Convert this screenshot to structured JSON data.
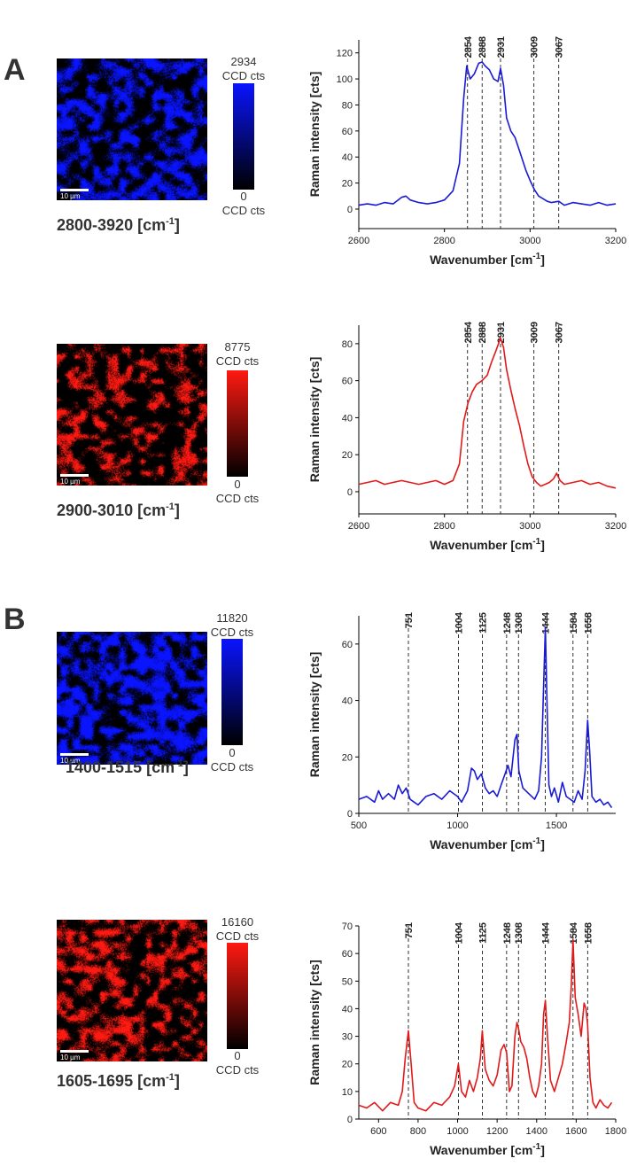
{
  "panels": [
    {
      "letter": "A"
    },
    {
      "letter": "B"
    }
  ],
  "maps": [
    {
      "color": "#0a14ff",
      "range": "2800-3920 [cm",
      "range_unit": "-1",
      "range_close": "]",
      "max": "2934",
      "min": "0",
      "unit": "CCD cts",
      "scale": "10 µm"
    },
    {
      "color": "#ff1a12",
      "range": "2900-3010 [cm",
      "range_unit": "-1",
      "range_close": "]",
      "max": "8775",
      "min": "0",
      "unit": "CCD cts",
      "scale": "10 µm"
    },
    {
      "color": "#0a14ff",
      "range": "1400-1515 [cm",
      "range_unit": "-1",
      "range_close": "]",
      "max": "11820",
      "min": "0",
      "unit": "CCD cts",
      "scale": "10 µm"
    },
    {
      "color": "#ff1a12",
      "range": "1605-1695 [cm",
      "range_unit": "-1",
      "range_close": "]",
      "max": "16160",
      "min": "0",
      "unit": "CCD cts",
      "scale": "10 µm"
    }
  ],
  "chart_data": [
    {
      "type": "line",
      "color": "#1a1ad6",
      "xlabel": "Wavenumber [cm",
      "xlabel_sup": "-1",
      "xlabel_close": "]",
      "ylabel": "Raman intensity [cts]",
      "xlim": [
        2600,
        3200
      ],
      "ylim": [
        -15,
        130
      ],
      "xticks": [
        2600,
        2800,
        3000,
        3200
      ],
      "yticks": [
        0,
        20,
        40,
        60,
        80,
        100,
        120
      ],
      "peaks": [
        2854,
        2888,
        2931,
        3009,
        3067
      ],
      "x": [
        2600,
        2620,
        2640,
        2660,
        2680,
        2700,
        2710,
        2720,
        2740,
        2760,
        2780,
        2800,
        2820,
        2835,
        2845,
        2852,
        2860,
        2870,
        2880,
        2888,
        2895,
        2905,
        2915,
        2925,
        2931,
        2938,
        2945,
        2955,
        2965,
        2975,
        2990,
        3000,
        3010,
        3020,
        3030,
        3040,
        3050,
        3067,
        3080,
        3100,
        3120,
        3140,
        3160,
        3180,
        3200
      ],
      "y": [
        3,
        4,
        3,
        5,
        4,
        9,
        10,
        7,
        5,
        4,
        5,
        7,
        14,
        35,
        85,
        110,
        100,
        104,
        112,
        113,
        110,
        107,
        100,
        98,
        108,
        95,
        70,
        60,
        55,
        45,
        30,
        22,
        15,
        10,
        8,
        6,
        5,
        6,
        3,
        5,
        4,
        3,
        5,
        3,
        4
      ]
    },
    {
      "type": "line",
      "color": "#e01a1a",
      "xlabel": "Wavenumber [cm",
      "xlabel_sup": "-1",
      "xlabel_close": "]",
      "ylabel": "Raman intensity [cts]",
      "xlim": [
        2600,
        3200
      ],
      "ylim": [
        -12,
        90
      ],
      "xticks": [
        2600,
        2800,
        3000,
        3200
      ],
      "yticks": [
        0,
        20,
        40,
        60,
        80
      ],
      "peaks": [
        2854,
        2888,
        2931,
        3009,
        3067
      ],
      "x": [
        2600,
        2620,
        2640,
        2660,
        2680,
        2700,
        2720,
        2740,
        2760,
        2780,
        2800,
        2820,
        2835,
        2845,
        2855,
        2865,
        2875,
        2888,
        2900,
        2910,
        2920,
        2931,
        2938,
        2945,
        2955,
        2965,
        2975,
        2985,
        2995,
        3005,
        3015,
        3025,
        3035,
        3045,
        3055,
        3062,
        3070,
        3080,
        3100,
        3120,
        3140,
        3160,
        3180,
        3200
      ],
      "y": [
        4,
        5,
        6,
        4,
        5,
        6,
        5,
        4,
        5,
        6,
        4,
        6,
        15,
        38,
        48,
        54,
        58,
        60,
        63,
        70,
        76,
        83,
        78,
        66,
        55,
        45,
        36,
        25,
        15,
        8,
        5,
        3,
        4,
        5,
        7,
        10,
        6,
        4,
        5,
        6,
        4,
        5,
        3,
        2
      ]
    },
    {
      "type": "line",
      "color": "#1a1ad6",
      "xlabel": "Wavenumber [cm",
      "xlabel_sup": "-1",
      "xlabel_close": "]",
      "ylabel": "Raman intensity [cts]",
      "xlim": [
        500,
        1800
      ],
      "ylim": [
        0,
        70
      ],
      "xticks": [
        500,
        1000,
        1500
      ],
      "xticklabels_show": [
        500,
        1000,
        1500
      ],
      "yticks": [
        0,
        20,
        40,
        60
      ],
      "peaks": [
        751,
        1004,
        1125,
        1248,
        1308,
        1444,
        1584,
        1658
      ],
      "x": [
        500,
        540,
        580,
        600,
        620,
        650,
        680,
        700,
        720,
        740,
        760,
        780,
        800,
        840,
        880,
        920,
        960,
        1000,
        1020,
        1050,
        1070,
        1085,
        1100,
        1120,
        1140,
        1160,
        1180,
        1200,
        1220,
        1240,
        1255,
        1270,
        1290,
        1300,
        1310,
        1330,
        1360,
        1390,
        1410,
        1425,
        1435,
        1444,
        1452,
        1462,
        1475,
        1490,
        1510,
        1530,
        1550,
        1570,
        1590,
        1610,
        1630,
        1645,
        1658,
        1668,
        1680,
        1700,
        1720,
        1740,
        1760,
        1780
      ],
      "y": [
        5,
        6,
        4,
        8,
        5,
        7,
        5,
        10,
        7,
        9,
        5,
        4,
        3,
        6,
        7,
        5,
        8,
        6,
        4,
        8,
        16,
        15,
        12,
        14,
        9,
        7,
        8,
        6,
        10,
        14,
        17,
        13,
        26,
        28,
        15,
        9,
        7,
        5,
        8,
        20,
        45,
        66,
        40,
        10,
        6,
        9,
        4,
        11,
        6,
        5,
        4,
        8,
        5,
        15,
        33,
        22,
        6,
        4,
        5,
        3,
        4,
        2
      ]
    },
    {
      "type": "line",
      "color": "#e01a1a",
      "xlabel": "Wavenumber [cm",
      "xlabel_sup": "-1",
      "xlabel_close": "]",
      "ylabel": "Raman intensity [cts]",
      "xlim": [
        500,
        1800
      ],
      "ylim": [
        0,
        70
      ],
      "xticks": [
        600,
        800,
        1000,
        1200,
        1400,
        1600,
        1800
      ],
      "yticks": [
        0,
        10,
        20,
        30,
        40,
        50,
        60,
        70
      ],
      "peaks": [
        751,
        1004,
        1125,
        1248,
        1308,
        1444,
        1584,
        1658
      ],
      "x": [
        500,
        540,
        580,
        620,
        660,
        700,
        720,
        735,
        751,
        765,
        780,
        800,
        840,
        880,
        920,
        960,
        985,
        1004,
        1020,
        1040,
        1060,
        1080,
        1100,
        1115,
        1125,
        1140,
        1160,
        1180,
        1200,
        1220,
        1235,
        1248,
        1262,
        1275,
        1290,
        1300,
        1308,
        1320,
        1335,
        1350,
        1365,
        1380,
        1395,
        1410,
        1425,
        1435,
        1444,
        1455,
        1470,
        1490,
        1510,
        1530,
        1550,
        1565,
        1575,
        1584,
        1595,
        1610,
        1625,
        1640,
        1650,
        1658,
        1670,
        1685,
        1700,
        1720,
        1740,
        1760,
        1780
      ],
      "y": [
        5,
        4,
        6,
        3,
        6,
        5,
        10,
        22,
        32,
        20,
        6,
        4,
        3,
        6,
        5,
        8,
        12,
        20,
        10,
        8,
        14,
        10,
        15,
        22,
        32,
        18,
        14,
        12,
        16,
        25,
        27,
        24,
        10,
        12,
        30,
        35,
        33,
        28,
        26,
        22,
        15,
        10,
        8,
        12,
        20,
        38,
        43,
        30,
        14,
        10,
        15,
        20,
        28,
        35,
        48,
        65,
        44,
        38,
        30,
        42,
        40,
        34,
        15,
        6,
        4,
        7,
        5,
        4,
        6
      ]
    }
  ]
}
